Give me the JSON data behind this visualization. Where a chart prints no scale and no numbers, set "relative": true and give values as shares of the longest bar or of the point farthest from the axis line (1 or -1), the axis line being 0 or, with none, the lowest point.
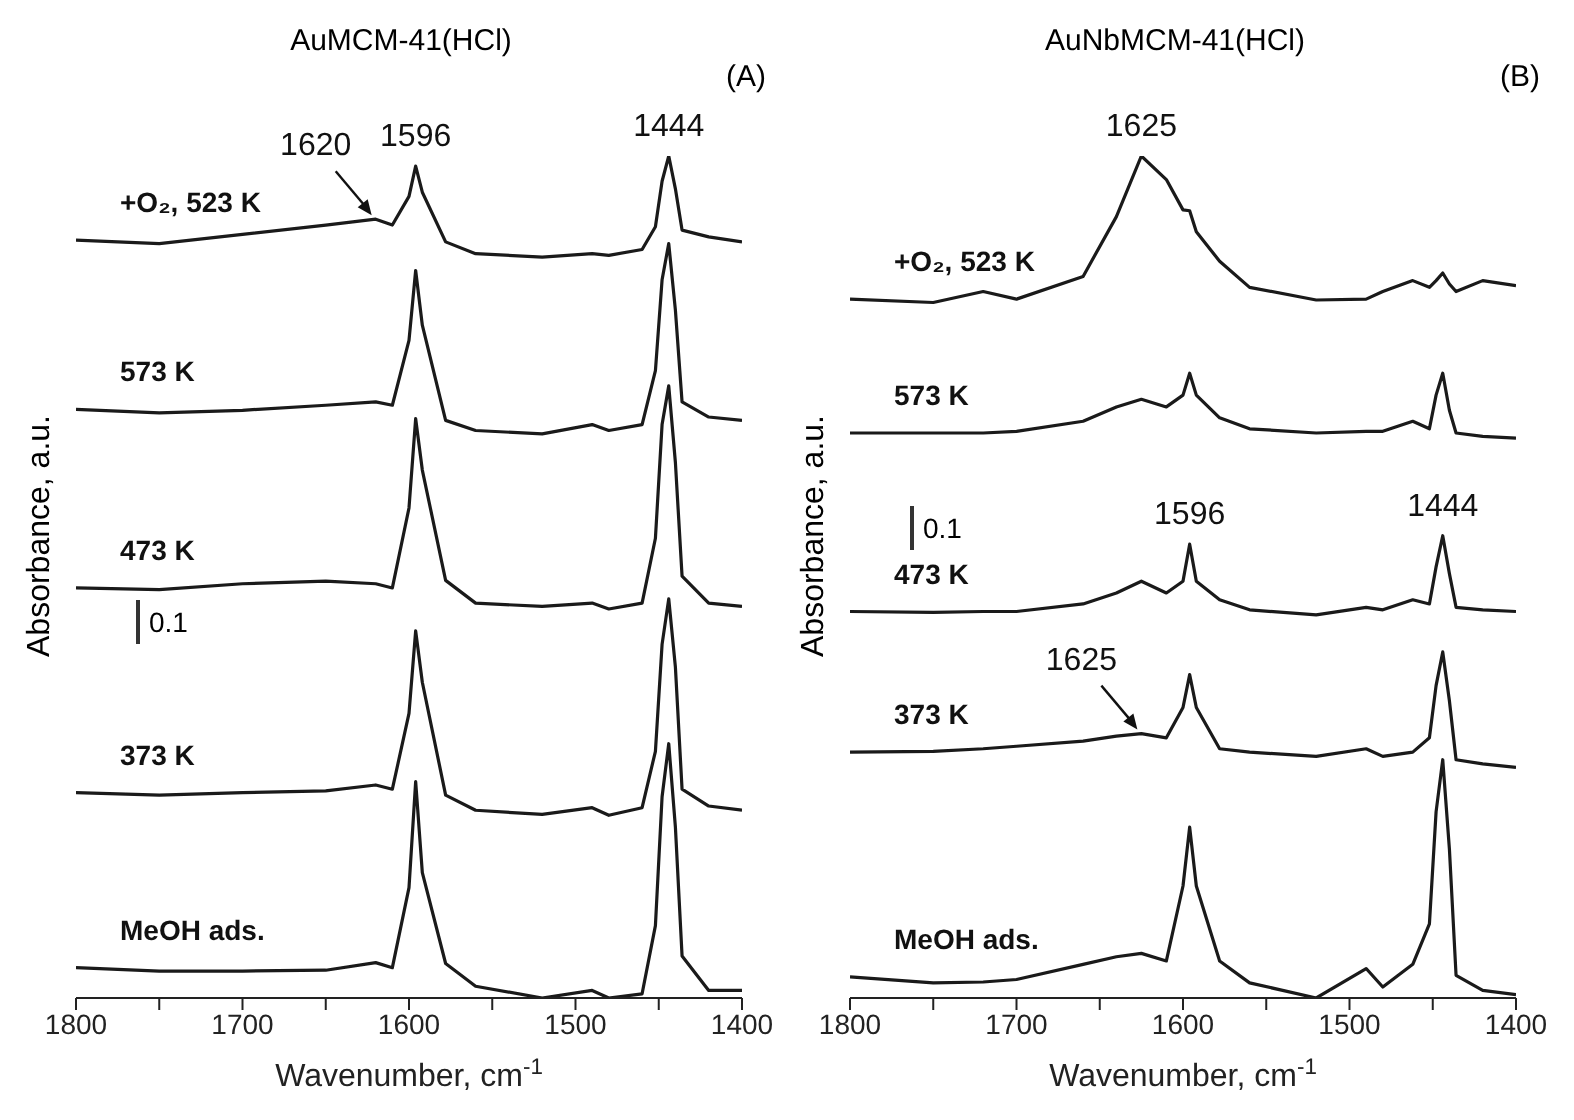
{
  "chart_data": [
    {
      "type": "line",
      "title": "AuMCM-41(HCl)",
      "xlabel": "Wavenumber, cm$^{-1}$",
      "ylabel": "Absorbance, a.u.",
      "relative": true,
      "x": [
        1800,
        1750,
        1700,
        1650,
        1620,
        1610,
        1600,
        1596,
        1592,
        1578,
        1560,
        1520,
        1490,
        1480,
        1460,
        1452,
        1448,
        1444,
        1440,
        1436,
        1420,
        1400
      ],
      "xlim": [
        1800,
        1400
      ],
      "xticks": [
        1800,
        {
          "value": 1750,
          "label": null
        },
        1700,
        {
          "value": 1650,
          "label": null
        },
        1600,
        {
          "value": 1550,
          "label": null
        },
        1500,
        {
          "value": 1450,
          "label": null
        },
        1400
      ],
      "series": [
        {
          "name": "+O₂, 523 K",
          "color": "#1a1a1a",
          "values": [
            0.9,
            0.896,
            0.907,
            0.918,
            0.925,
            0.918,
            0.952,
            0.988,
            0.957,
            0.898,
            0.884,
            0.88,
            0.884,
            0.882,
            0.889,
            0.916,
            0.97,
            1.0,
            0.961,
            0.912,
            0.904,
            0.898
          ]
        },
        {
          "name": "573 K",
          "color": "#1a1a1a",
          "values": [
            0.699,
            0.695,
            0.698,
            0.704,
            0.708,
            0.704,
            0.781,
            0.864,
            0.799,
            0.686,
            0.674,
            0.67,
            0.681,
            0.674,
            0.681,
            0.745,
            0.853,
            0.896,
            0.817,
            0.708,
            0.69,
            0.686
          ]
        },
        {
          "name": "473 K",
          "color": "#1a1a1a",
          "values": [
            0.487,
            0.485,
            0.492,
            0.495,
            0.492,
            0.487,
            0.582,
            0.688,
            0.627,
            0.496,
            0.469,
            0.465,
            0.469,
            0.462,
            0.469,
            0.546,
            0.681,
            0.727,
            0.636,
            0.501,
            0.469,
            0.465
          ]
        },
        {
          "name": "373 K",
          "color": "#1a1a1a",
          "values": [
            0.244,
            0.241,
            0.244,
            0.246,
            0.253,
            0.248,
            0.338,
            0.436,
            0.375,
            0.241,
            0.223,
            0.218,
            0.226,
            0.217,
            0.226,
            0.293,
            0.42,
            0.474,
            0.393,
            0.248,
            0.228,
            0.223
          ]
        },
        {
          "name": "MeOH ads.",
          "color": "#1a1a1a",
          "values": [
            0.036,
            0.032,
            0.032,
            0.033,
            0.042,
            0.036,
            0.131,
            0.257,
            0.149,
            0.041,
            0.014,
            0,
            0.009,
            0,
            0.005,
            0.086,
            0.239,
            0.302,
            0.203,
            0.05,
            0.009,
            0.009
          ]
        }
      ],
      "annotations": [
        "(A)",
        "0.1",
        {
          "text": "1620",
          "x": 1620,
          "y": 0.925
        },
        {
          "text": "1596",
          "x": 1596,
          "y": 0.988
        },
        {
          "text": "1444",
          "x": 1444,
          "y": 1.0
        }
      ]
    },
    {
      "type": "line",
      "title": "AuNbMCM-41(HCl)",
      "xlabel": "Wavenumber, cm$^{-1}$",
      "ylabel": "Absorbance, a.u.",
      "relative": true,
      "x": [
        1800,
        1750,
        1720,
        1700,
        1660,
        1640,
        1625,
        1610,
        1600,
        1596,
        1592,
        1578,
        1560,
        1520,
        1490,
        1480,
        1462,
        1452,
        1448,
        1444,
        1440,
        1436,
        1420,
        1400
      ],
      "xlim": [
        1800,
        1400
      ],
      "xticks": [
        1800,
        {
          "value": 1750,
          "label": null
        },
        1700,
        {
          "value": 1650,
          "label": null
        },
        1600,
        {
          "value": 1550,
          "label": null
        },
        1500,
        {
          "value": 1450,
          "label": null
        },
        1400
      ],
      "series": [
        {
          "name": "+O₂, 523 K",
          "color": "#1a1a1a",
          "values": [
            0.83,
            0.826,
            0.839,
            0.83,
            0.857,
            0.928,
            1.0,
            0.972,
            0.936,
            0.935,
            0.91,
            0.875,
            0.844,
            0.829,
            0.83,
            0.839,
            0.852,
            0.844,
            0.852,
            0.861,
            0.848,
            0.839,
            0.852,
            0.846
          ]
        },
        {
          "name": "573 K",
          "color": "#1a1a1a",
          "values": [
            0.671,
            0.671,
            0.671,
            0.673,
            0.685,
            0.702,
            0.711,
            0.702,
            0.716,
            0.742,
            0.716,
            0.689,
            0.676,
            0.671,
            0.673,
            0.673,
            0.685,
            0.676,
            0.716,
            0.742,
            0.698,
            0.671,
            0.667,
            0.665
          ]
        },
        {
          "name": "473 K",
          "color": "#1a1a1a",
          "values": [
            0.459,
            0.458,
            0.459,
            0.459,
            0.468,
            0.481,
            0.495,
            0.481,
            0.495,
            0.539,
            0.495,
            0.473,
            0.461,
            0.455,
            0.464,
            0.461,
            0.473,
            0.468,
            0.512,
            0.549,
            0.504,
            0.464,
            0.461,
            0.459
          ]
        },
        {
          "name": "373 K",
          "color": "#1a1a1a",
          "values": [
            0.292,
            0.293,
            0.296,
            0.299,
            0.305,
            0.311,
            0.314,
            0.309,
            0.345,
            0.384,
            0.345,
            0.296,
            0.292,
            0.287,
            0.296,
            0.287,
            0.292,
            0.309,
            0.371,
            0.411,
            0.353,
            0.283,
            0.278,
            0.274
          ]
        },
        {
          "name": "MeOH ads.",
          "color": "#1a1a1a",
          "values": [
            0.025,
            0.018,
            0.019,
            0.022,
            0.04,
            0.049,
            0.053,
            0.044,
            0.133,
            0.203,
            0.133,
            0.044,
            0.018,
            0,
            0.035,
            0.013,
            0.04,
            0.088,
            0.221,
            0.283,
            0.177,
            0.027,
            0.009,
            0.004
          ]
        }
      ],
      "annotations": [
        "(B)",
        "0.1",
        {
          "text": "1625",
          "x": 1625,
          "y": 1.0
        },
        {
          "text": "1596",
          "x": 1596,
          "y": 0.539
        },
        {
          "text": "1444",
          "x": 1444,
          "y": 0.549
        },
        {
          "text": "1625",
          "x": 1625,
          "y": 0.314
        }
      ]
    }
  ]
}
